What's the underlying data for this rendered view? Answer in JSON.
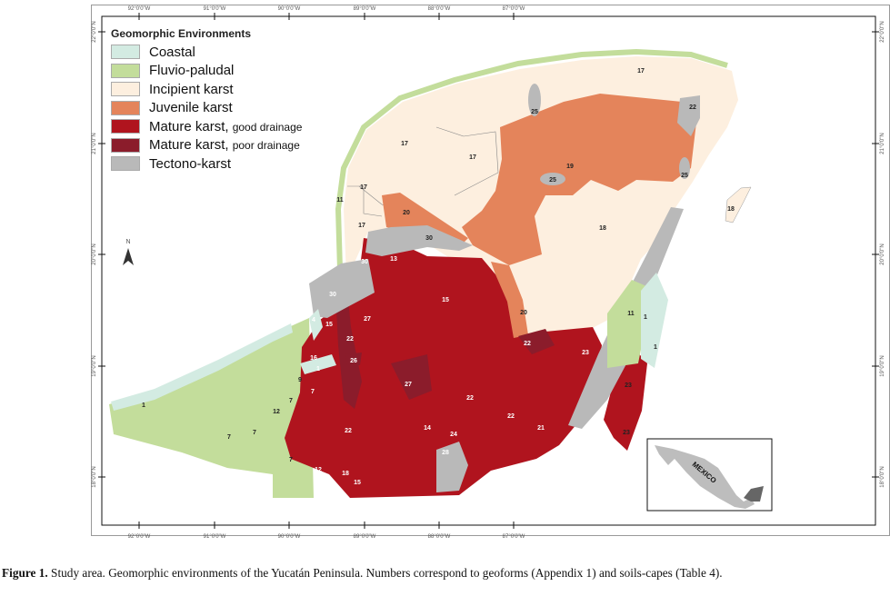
{
  "legend": {
    "title": "Geomorphic Environments",
    "items": [
      {
        "label": "Coastal",
        "sub": "",
        "color": "#d3ebe2"
      },
      {
        "label": "Fluvio-paludal",
        "sub": "",
        "color": "#c3dd9b"
      },
      {
        "label": "Incipient karst",
        "sub": "",
        "color": "#fdefdf"
      },
      {
        "label": "Juvenile karst",
        "sub": "",
        "color": "#e4845b"
      },
      {
        "label": "Mature karst",
        "sub": "good drainage",
        "color": "#b0141e"
      },
      {
        "label": "Mature karst",
        "sub": "poor drainage",
        "color": "#8b1c2b"
      },
      {
        "label": "Tectono-karst",
        "sub": "",
        "color": "#b9b9b9"
      }
    ]
  },
  "axes": {
    "longitude_ticks": [
      "92°0'0\"W",
      "91°0'0\"W",
      "90°0'0\"W",
      "89°0'0\"W",
      "88°0'0\"W",
      "87°0'0\"W"
    ],
    "latitude_ticks": [
      "22°0'0\"N",
      "21°0'0\"N",
      "20°0'0\"N",
      "19°0'0\"N",
      "18°0'0\"N"
    ]
  },
  "north_arrow": "N",
  "inset_label": "MEXICO",
  "map_labels": [
    "17",
    "17",
    "17",
    "17",
    "17",
    "25",
    "22",
    "19",
    "25",
    "25",
    "18",
    "20",
    "18",
    "30",
    "11",
    "30",
    "13",
    "30",
    "15",
    "20",
    "4",
    "15",
    "27",
    "11",
    "1",
    "22",
    "22",
    "23",
    "1",
    "16",
    "26",
    "1",
    "27",
    "22",
    "23",
    "9",
    "7",
    "7",
    "12",
    "22",
    "21",
    "22",
    "14",
    "24",
    "23",
    "28",
    "7",
    "7",
    "1",
    "7",
    "12",
    "18",
    "15"
  ],
  "caption": {
    "bold": "Figure 1.",
    "text": " Study area. Geomorphic environments of the Yucatán Peninsula. Numbers correspond to geoforms (Appendix 1) and soils-capes (Table 4)."
  }
}
